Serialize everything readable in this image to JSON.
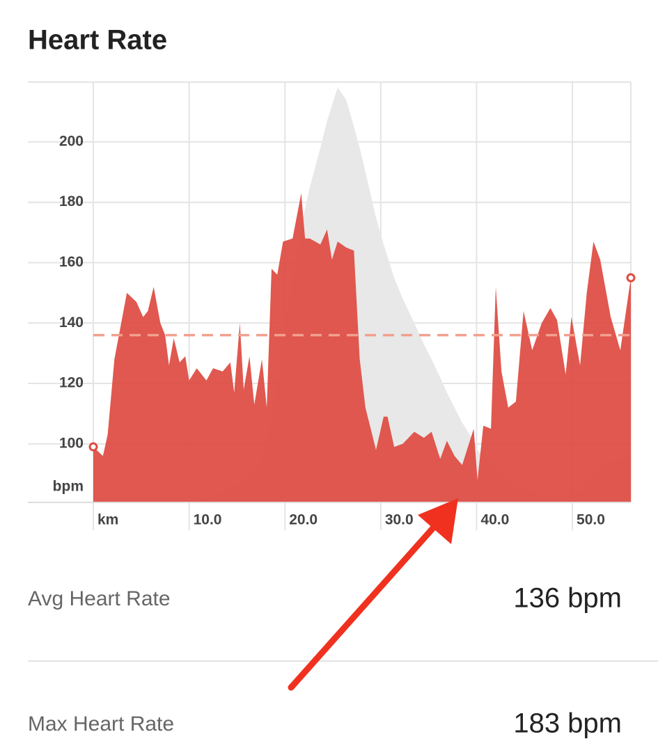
{
  "header": {
    "title": "Heart Rate"
  },
  "chart_data": {
    "type": "area",
    "x": [
      0.0,
      1.0,
      1.5,
      2.2,
      3.5,
      4.5,
      5.2,
      5.7,
      6.3,
      7.0,
      7.5,
      7.9,
      8.4,
      9.0,
      9.6,
      10.0,
      10.8,
      11.8,
      12.5,
      13.5,
      14.3,
      14.7,
      15.3,
      15.7,
      16.3,
      16.8,
      17.6,
      18.1,
      18.6,
      19.2,
      19.8,
      20.8,
      21.7,
      22.1,
      22.6,
      23.7,
      24.4,
      24.9,
      25.5,
      26.4,
      27.2,
      27.8,
      28.4,
      29.5,
      30.3,
      30.7,
      31.4,
      32.3,
      33.5,
      34.5,
      35.3,
      36.2,
      36.9,
      37.7,
      38.5,
      39.7,
      40.1,
      40.7,
      41.5,
      42.0,
      42.6,
      43.3,
      44.1,
      44.9,
      45.8,
      46.8,
      47.7,
      48.4,
      49.3,
      49.9,
      50.8,
      51.5,
      52.2,
      52.9,
      54.0,
      55.0,
      56.1
    ],
    "series": [
      {
        "color": "#e8e8e8",
        "values": [
          84,
          82,
          81,
          81,
          81,
          81,
          81,
          81,
          81,
          81,
          81,
          81,
          81,
          81,
          81,
          81,
          81,
          82,
          83,
          84,
          85,
          86,
          87,
          88,
          90,
          92,
          95,
          100,
          110,
          122,
          135,
          155,
          172,
          178,
          185,
          198,
          207,
          212,
          218,
          214,
          205,
          198,
          190,
          175,
          166,
          162,
          155,
          148,
          140,
          133,
          128,
          122,
          117,
          112,
          107,
          101,
          98,
          96,
          93,
          91,
          90,
          88,
          86,
          85,
          84,
          83,
          83,
          83,
          83,
          83,
          84,
          87,
          90,
          92,
          94,
          95,
          96
        ]
      },
      {
        "color": "#dd4a40",
        "values": [
          99,
          96,
          103,
          128,
          150,
          147,
          142,
          144,
          152,
          140,
          136,
          126,
          135,
          127,
          129,
          121,
          125,
          121,
          125,
          124,
          127,
          117,
          140,
          118,
          129,
          113,
          128,
          112,
          158,
          156,
          167,
          168,
          183,
          168,
          168,
          166,
          171,
          161,
          167,
          165,
          164,
          128,
          112,
          98,
          109,
          109,
          99,
          100,
          104,
          102,
          104,
          95,
          101,
          96,
          93,
          105,
          88,
          106,
          105,
          152,
          124,
          112,
          114,
          144,
          131,
          140,
          145,
          141,
          123,
          142,
          126,
          150,
          167,
          161,
          142,
          131,
          155
        ]
      }
    ],
    "average": 136,
    "average_color": "#f2a08f",
    "xlim": [
      0,
      56.1
    ],
    "ylim": [
      80.6,
      219.8
    ],
    "xticks": [
      {
        "value": 0,
        "label": "km"
      },
      {
        "value": 10,
        "label": "10.0"
      },
      {
        "value": 20,
        "label": "20.0"
      },
      {
        "value": 30,
        "label": "30.0"
      },
      {
        "value": 40,
        "label": "40.0"
      },
      {
        "value": 50,
        "label": "50.0"
      }
    ],
    "yticks": [
      100,
      120,
      140,
      160,
      180,
      200
    ],
    "ylabel": "bpm",
    "grid": true
  },
  "stats": [
    {
      "label": "Avg Heart Rate",
      "value": "136 bpm"
    },
    {
      "label": "Max Heart Rate",
      "value": "183 bpm"
    }
  ]
}
